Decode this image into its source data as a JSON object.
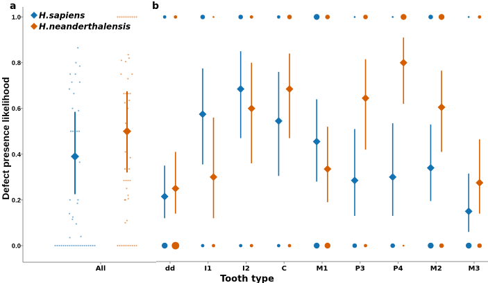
{
  "colors": {
    "sapiens": "#1372b2",
    "neanderthalensis": "#d55e00",
    "axis": "#888888"
  },
  "chart_data": [
    {
      "panel_label": "a",
      "type": "scatter",
      "ylabel": "Defect presence likelihood",
      "ylim": [
        0,
        1
      ],
      "yticks": [
        "0.0",
        "0.2",
        "0.4",
        "0.6",
        "0.8",
        "1.0"
      ],
      "categories": [
        "All"
      ],
      "legend": {
        "placement": "top-left",
        "entries": [
          "H.sapiens",
          "H.neanderthalensis"
        ]
      },
      "series": [
        {
          "name": "H.sapiens",
          "mean": 0.39,
          "ci": [
            0.225,
            0.585
          ],
          "points": [
            0.865,
            0.8,
            0.785,
            0.75,
            0.75,
            0.715,
            0.715,
            0.685,
            0.665,
            0.6,
            0.59,
            0.5,
            0.5,
            0.5,
            0.5,
            0.5,
            0.365,
            0.2,
            0.2,
            0.185,
            0.14,
            0.125,
            0.115,
            0.095,
            0.04,
            0.035,
            0,
            0,
            0,
            0,
            0,
            0,
            0,
            0,
            0,
            0,
            0,
            0,
            0,
            0,
            0,
            0,
            0,
            0,
            0,
            0
          ],
          "points_note_free": true
        },
        {
          "name": "H.neanderthalensis",
          "mean": 0.5,
          "ci": [
            0.32,
            0.675
          ],
          "points": [
            1,
            1,
            1,
            1,
            1,
            1,
            1,
            1,
            1,
            1,
            0.835,
            0.82,
            0.81,
            0.805,
            0.75,
            0.75,
            0.73,
            0.665,
            0.665,
            0.665,
            0.665,
            0.635,
            0.625,
            0.6,
            0.535,
            0.5,
            0.5,
            0.5,
            0.41,
            0.385,
            0.335,
            0.335,
            0.335,
            0.285,
            0.285,
            0.285,
            0.285,
            0.25,
            0.22,
            0.205,
            0.2,
            0.2,
            0.11,
            0.1,
            0,
            0,
            0,
            0,
            0,
            0,
            0,
            0,
            0,
            0
          ]
        }
      ]
    },
    {
      "panel_label": "b",
      "type": "scatter",
      "xlabel": "Tooth type",
      "ylim": [
        0,
        1
      ],
      "categories": [
        "dd",
        "I1",
        "I2",
        "C",
        "M1",
        "P3",
        "P4",
        "M2",
        "M3"
      ],
      "series": [
        {
          "name": "H.sapiens",
          "mean": [
            0.215,
            0.575,
            0.685,
            0.545,
            0.455,
            0.285,
            0.3,
            0.34,
            0.15
          ],
          "ci_low": [
            0.12,
            0.355,
            0.47,
            0.305,
            0.28,
            0.13,
            0.13,
            0.195,
            0.06
          ],
          "ci_high": [
            0.35,
            0.775,
            0.85,
            0.76,
            0.64,
            0.51,
            0.535,
            0.53,
            0.315
          ],
          "size_at_1": [
            2,
            3,
            3,
            2,
            4,
            1,
            1,
            3,
            1
          ],
          "size_at_0": [
            4,
            2,
            2,
            2,
            4,
            3,
            3,
            4,
            4
          ]
        },
        {
          "name": "H.neanderthalensis",
          "mean": [
            0.25,
            0.3,
            0.6,
            0.685,
            0.335,
            0.645,
            0.8,
            0.605,
            0.275
          ],
          "ci_low": [
            0.14,
            0.12,
            0.36,
            0.47,
            0.19,
            0.42,
            0.62,
            0.41,
            0.14
          ],
          "ci_high": [
            0.41,
            0.56,
            0.8,
            0.84,
            0.52,
            0.815,
            0.91,
            0.765,
            0.465
          ],
          "size_at_1": [
            2,
            1,
            2,
            3,
            3,
            3,
            4,
            4,
            2
          ],
          "size_at_0": [
            5,
            2,
            2,
            2,
            4,
            2,
            1,
            3,
            3
          ]
        }
      ]
    }
  ]
}
